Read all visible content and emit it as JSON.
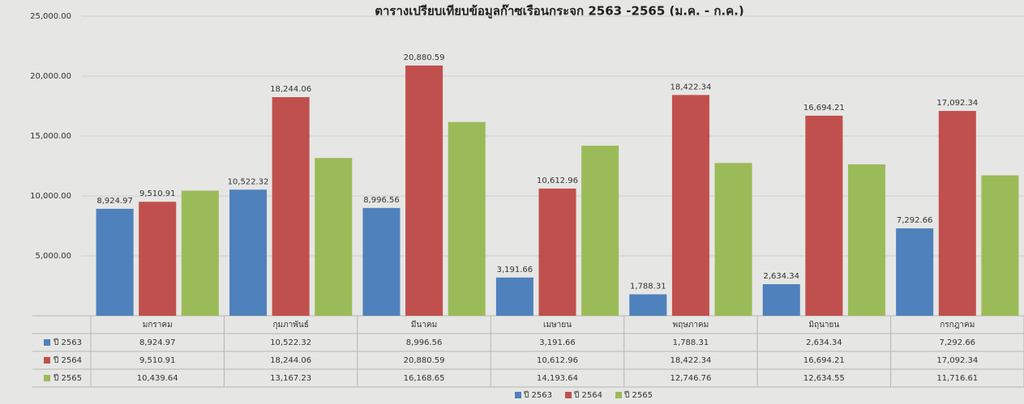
{
  "chart_data": {
    "type": "bar",
    "title": "ตารางเปรียบเทียบข้อมูลก๊าซเรือนกระจก 2563 -2565 (ม.ค. - ก.ค.)",
    "categories": [
      "มกราคม",
      "กุมภาพันธ์",
      "มีนาคม",
      "เมษายน",
      "พฤษภาคม",
      "มิถุนายน",
      "กรกฎาคม"
    ],
    "series": [
      {
        "name": "ปี 2563",
        "color": "#4f81bd",
        "values": [
          8924.97,
          10522.32,
          8996.56,
          3191.66,
          1788.31,
          2634.34,
          7292.66
        ],
        "value_labels": [
          "8,924.97",
          "10,522.32",
          "8,996.56",
          "3,191.66",
          "1,788.31",
          "2,634.34",
          "7,292.66"
        ]
      },
      {
        "name": "ปี 2564",
        "color": "#c0504d",
        "values": [
          9510.91,
          18244.06,
          20880.59,
          10612.96,
          18422.34,
          16694.21,
          17092.34
        ],
        "value_labels": [
          "9,510.91",
          "18,244.06",
          "20,880.59",
          "10,612.96",
          "18,422.34",
          "16,694.21",
          "17,092.34"
        ]
      },
      {
        "name": "ปี 2565",
        "color": "#9bbb59",
        "values": [
          10439.64,
          13167.23,
          16168.65,
          14193.64,
          12746.76,
          12634.55,
          11716.61
        ],
        "value_labels": [
          "10,439.64",
          "13,167.23",
          "16,168.65",
          "14,193.64",
          "12,746.76",
          "12,634.55",
          "11,716.61"
        ]
      }
    ],
    "ylim": [
      0,
      25000
    ],
    "yticks": [
      {
        "value": 0,
        "label": "-"
      },
      {
        "value": 5000,
        "label": "5,000.00"
      },
      {
        "value": 10000,
        "label": "10,000.00"
      },
      {
        "value": 15000,
        "label": "15,000.00"
      },
      {
        "value": 20000,
        "label": "20,000.00"
      },
      {
        "value": 25000,
        "label": "25,000.00"
      }
    ],
    "grid": true,
    "data_labels_series": [
      0,
      1
    ]
  }
}
